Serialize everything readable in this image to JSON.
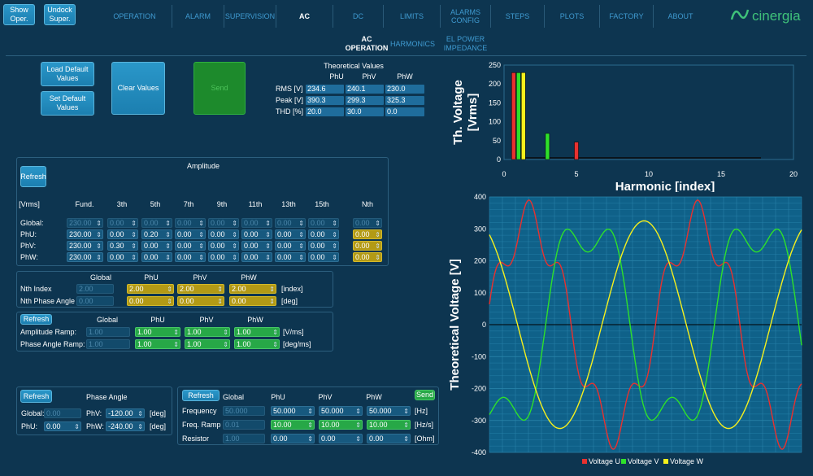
{
  "top_buttons": {
    "show": "Show Oper.",
    "undock": "Undock Super."
  },
  "nav": {
    "tabs": [
      "OPERATION",
      "ALARM",
      "SUPERVISION",
      "AC",
      "DC",
      "LIMITS",
      "ALARMS CONFIG",
      "STEPS",
      "PLOTS",
      "FACTORY",
      "ABOUT"
    ],
    "active": "AC"
  },
  "logo": {
    "text": "cinergia"
  },
  "subnav": {
    "tabs": [
      "AC OPERATION",
      "HARMONICS",
      "EL POWER IMPEDANCE"
    ]
  },
  "buttons": {
    "load_default": "Load Default Values",
    "set_default": "Set Default Values",
    "clear": "Clear Values",
    "send": "Send",
    "refresh": "Refresh",
    "send_small": "Send"
  },
  "theoretical": {
    "title": "Theoretical Values",
    "cols": [
      "PhU",
      "PhV",
      "PhW"
    ],
    "rows": [
      {
        "label": "RMS [V]",
        "values": [
          "234.6",
          "240.1",
          "230.0"
        ]
      },
      {
        "label": "Peak [V]",
        "values": [
          "390.3",
          "299.3",
          "325.3"
        ]
      },
      {
        "label": "THD [%]",
        "values": [
          "20.0",
          "30.0",
          "0.0"
        ]
      }
    ]
  },
  "amplitude": {
    "title": "Amplitude",
    "cols": [
      "[Vrms]",
      "Fund.",
      "3th",
      "5th",
      "7th",
      "9th",
      "11th",
      "13th",
      "15th",
      "Nth"
    ],
    "rows": [
      {
        "label": "Global:",
        "values": [
          "230.00",
          "0.00",
          "0.00",
          "0.00",
          "0.00",
          "0.00",
          "0.00",
          "0.00"
        ],
        "nth": "0.00"
      },
      {
        "label": "PhU:",
        "values": [
          "230.00",
          "0.00",
          "0.20",
          "0.00",
          "0.00",
          "0.00",
          "0.00",
          "0.00"
        ],
        "nth": "0.00"
      },
      {
        "label": "PhV:",
        "values": [
          "230.00",
          "0.30",
          "0.00",
          "0.00",
          "0.00",
          "0.00",
          "0.00",
          "0.00"
        ],
        "nth": "0.00"
      },
      {
        "label": "PhW:",
        "values": [
          "230.00",
          "0.00",
          "0.00",
          "0.00",
          "0.00",
          "0.00",
          "0.00",
          "0.00"
        ],
        "nth": "0.00"
      }
    ]
  },
  "nth": {
    "cols": [
      "Global",
      "PhU",
      "PhV",
      "PhW"
    ],
    "rows": [
      {
        "label": "Nth Index",
        "global": "2.00",
        "values": [
          "2.00",
          "2.00",
          "2.00"
        ],
        "unit": "[index]"
      },
      {
        "label": "Nth Phase Angle",
        "global": "0.00",
        "values": [
          "0.00",
          "0.00",
          "0.00"
        ],
        "unit": "[deg]"
      }
    ]
  },
  "ramp": {
    "cols": [
      "Global",
      "PhU",
      "PhV",
      "PhW"
    ],
    "rows": [
      {
        "label": "Amplitude Ramp:",
        "global": "1.00",
        "values": [
          "1.00",
          "1.00",
          "1.00"
        ],
        "unit": "[V/ms]"
      },
      {
        "label": "Phase Angle Ramp:",
        "global": "1.00",
        "values": [
          "1.00",
          "1.00",
          "1.00"
        ],
        "unit": "[deg/ms]"
      }
    ]
  },
  "phase_angle": {
    "title": "Phase Angle",
    "global_label": "Global:",
    "global": "0.00",
    "phv_label": "PhV:",
    "phv": "-120.00",
    "phu_label": "PhU:",
    "phu": "0.00",
    "phw_label": "PhW:",
    "phw": "-240.00",
    "unit": "[deg]"
  },
  "freq": {
    "cols": [
      "Global",
      "PhU",
      "PhV",
      "PhW"
    ],
    "rows": [
      {
        "label": "Frequency",
        "global": "50.000",
        "values": [
          "50.000",
          "50.000",
          "50.000"
        ],
        "unit": "[Hz]"
      },
      {
        "label": "Freq. Ramp",
        "global": "0.01",
        "values": [
          "10.00",
          "10.00",
          "10.00"
        ],
        "unit": "[Hz/s]"
      },
      {
        "label": "Resistor",
        "global": "1.00",
        "values": [
          "0.00",
          "0.00",
          "0.00"
        ],
        "unit": "[Ohm]"
      }
    ]
  },
  "colors": {
    "u": "#e8312f",
    "v": "#2ee02a",
    "w": "#f6f01c",
    "accent": "#1c7fb0"
  },
  "chart_data": [
    {
      "type": "bar",
      "ylabel": "Th. Voltage [Vrms]",
      "xlabel": "Harmonic [index]",
      "xlim": [
        0,
        20
      ],
      "ylim": [
        0,
        250
      ],
      "xticks": [
        0,
        5,
        10,
        15,
        20
      ],
      "yticks": [
        0,
        50,
        100,
        150,
        200,
        250
      ],
      "series": [
        {
          "name": "Voltage U",
          "x": [
            1,
            5
          ],
          "values": [
            230,
            46
          ]
        },
        {
          "name": "Voltage V",
          "x": [
            1,
            3
          ],
          "values": [
            230,
            69
          ]
        },
        {
          "name": "Voltage W",
          "x": [
            1
          ],
          "values": [
            230
          ]
        }
      ]
    },
    {
      "type": "line",
      "ylabel": "Theoretical Voltage [V]",
      "ylim": [
        -400,
        400
      ],
      "yticks": [
        -400,
        -300,
        -200,
        -100,
        0,
        100,
        200,
        300,
        400
      ],
      "legend": "bottom",
      "series": [
        {
          "name": "Voltage U"
        },
        {
          "name": "Voltage V"
        },
        {
          "name": "Voltage W"
        }
      ]
    }
  ]
}
